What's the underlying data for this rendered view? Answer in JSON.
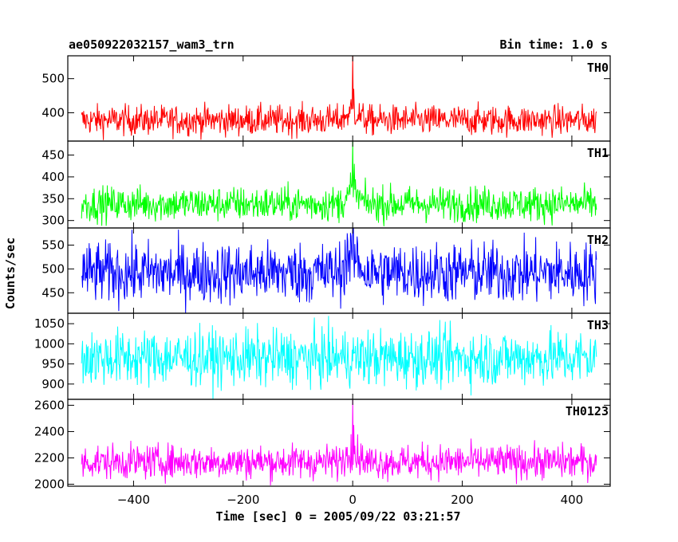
{
  "title_left": "ae050922032157_wam3_trn",
  "title_right": "Bin time: 1.0 s",
  "chart_data": {
    "type": "line",
    "xlabel": "Time [sec] 0 = 2005/09/22 03:21:57",
    "ylabel": "Counts/sec",
    "xlim": [
      -520,
      470
    ],
    "x_ticks": [
      -400,
      -200,
      0,
      200,
      400
    ],
    "x_range_data": [
      -495,
      445
    ],
    "panels": [
      {
        "name": "TH0",
        "color": "#ff0000",
        "ylim": [
          317,
          567
        ],
        "y_ticks": [
          400,
          500
        ],
        "baseline": 378,
        "noise": 22,
        "peak": [
          {
            "x": 0,
            "y": 570
          },
          {
            "x": 2,
            "y": 470
          },
          {
            "x": -3,
            "y": 440
          }
        ],
        "post_shift": 0
      },
      {
        "name": "TH1",
        "color": "#00ff00",
        "ylim": [
          283,
          482
        ],
        "y_ticks": [
          300,
          350,
          400,
          450
        ],
        "baseline": 338,
        "noise": 20,
        "peak": [
          {
            "x": 0,
            "y": 485
          },
          {
            "x": 3,
            "y": 430
          },
          {
            "x": -4,
            "y": 410
          }
        ],
        "post_shift": 0
      },
      {
        "name": "TH2",
        "color": "#0000ff",
        "ylim": [
          407,
          586
        ],
        "y_ticks": [
          450,
          500,
          550
        ],
        "baseline": 492,
        "noise": 32,
        "peak": [
          {
            "x": 0,
            "y": 580
          },
          {
            "x": -10,
            "y": 575
          }
        ],
        "post_shift": 0
      },
      {
        "name": "TH3",
        "color": "#00ffff",
        "ylim": [
          862,
          1076
        ],
        "y_ticks": [
          900,
          950,
          1000,
          1050
        ],
        "baseline": 965,
        "noise": 35,
        "peak": [],
        "post_shift": 0
      },
      {
        "name": "TH0123",
        "color": "#ff00ff",
        "ylim": [
          1985,
          2645
        ],
        "y_ticks": [
          2000,
          2200,
          2400,
          2600
        ],
        "baseline": 2170,
        "noise": 65,
        "peak": [
          {
            "x": 0,
            "y": 2650
          },
          {
            "x": 2,
            "y": 2450
          },
          {
            "x": -3,
            "y": 2380
          }
        ],
        "post_shift": 0
      }
    ]
  }
}
